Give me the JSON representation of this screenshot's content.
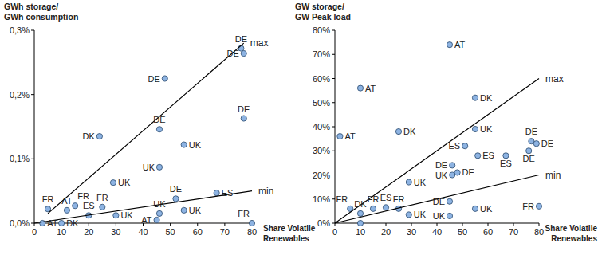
{
  "chart_data": [
    {
      "type": "scatter",
      "y_label": [
        "GWh storage/",
        "GWh consumption"
      ],
      "x_label": [
        "Share Volatile",
        "Renewables"
      ],
      "xlim": [
        0,
        80
      ],
      "xticks": [
        0,
        10,
        20,
        30,
        40,
        50,
        60,
        70,
        80
      ],
      "ylim": [
        0,
        0.3
      ],
      "yticks": [
        {
          "value": 0,
          "label": "0,0%"
        },
        {
          "value": 0.1,
          "label": "0,1%"
        },
        {
          "value": 0.2,
          "label": "0,2%"
        },
        {
          "value": 0.3,
          "label": "0,3%"
        }
      ],
      "grid": false,
      "series": [
        {
          "type": "scatter",
          "marker": "circle",
          "color": "#8db3e2",
          "x": [
            5,
            12,
            15,
            20,
            25,
            24,
            29,
            30,
            48,
            46,
            46,
            55,
            46,
            45,
            52,
            55,
            67,
            76,
            77,
            77,
            80,
            3,
            10
          ],
          "values": [
            0.022,
            0.02,
            0.027,
            0.012,
            0.025,
            0.135,
            0.063,
            0.012,
            0.225,
            0.146,
            0.087,
            0.122,
            0.015,
            0.005,
            0.038,
            0.02,
            0.047,
            0.272,
            0.264,
            0.163,
            0,
            0,
            0
          ],
          "point_labels": [
            "FR",
            "AT",
            "FR",
            "ES",
            "FR",
            "DK",
            "UK",
            "UK",
            "DE",
            "DE",
            "UK",
            "UK",
            "UK",
            "AT",
            "DE",
            "UK",
            "ES",
            "DE",
            "DE",
            "DE",
            "FR",
            "AT",
            "DK"
          ]
        },
        {
          "name": "max",
          "type": "line",
          "line_style": "solid",
          "color": "#000000",
          "x": [
            5,
            77
          ],
          "values": [
            0.015,
            0.28
          ]
        },
        {
          "name": "min",
          "type": "line",
          "line_style": "solid",
          "color": "#000000",
          "x": [
            0,
            80
          ],
          "values": [
            0,
            0.05
          ]
        }
      ]
    },
    {
      "type": "scatter",
      "y_label": [
        "GW storage/",
        "GW Peak load"
      ],
      "x_label": [
        "Share Volatile",
        "Renewables"
      ],
      "xlim": [
        0,
        80
      ],
      "xticks": [
        0,
        10,
        20,
        30,
        40,
        50,
        60,
        70,
        80
      ],
      "ylim": [
        0,
        80
      ],
      "yticks": [
        {
          "value": 0,
          "label": "0%"
        },
        {
          "value": 10,
          "label": "10%"
        },
        {
          "value": 20,
          "label": "20%"
        },
        {
          "value": 30,
          "label": "30%"
        },
        {
          "value": 40,
          "label": "40%"
        },
        {
          "value": 50,
          "label": "50%"
        },
        {
          "value": 60,
          "label": "60%"
        },
        {
          "value": 70,
          "label": "70%"
        },
        {
          "value": 80,
          "label": "80%"
        }
      ],
      "grid": false,
      "series": [
        {
          "type": "scatter",
          "marker": "circle",
          "color": "#8db3e2",
          "x": [
            2,
            10,
            45,
            25,
            55,
            6,
            10,
            15,
            20,
            25,
            29,
            29,
            45,
            45,
            55,
            55,
            46,
            46,
            48,
            51,
            56,
            67,
            77,
            79,
            76,
            80,
            10
          ],
          "values": [
            36,
            56,
            74,
            38,
            52,
            6,
            4,
            6,
            6.5,
            6,
            17,
            3.5,
            9,
            3,
            39,
            6,
            24,
            20,
            21,
            32,
            28,
            28,
            34,
            33,
            30,
            7,
            0
          ],
          "point_labels": [
            "AT",
            "AT",
            "AT",
            "DK",
            "DK",
            "FR",
            "DK",
            "FR",
            "ES",
            "FR",
            "UK",
            "UK",
            "DE",
            "UK",
            "UK",
            "UK",
            "DE",
            "UK",
            "DE",
            "ES",
            "ES",
            "ES",
            "DE",
            "DE",
            "DE",
            "FR",
            null
          ]
        },
        {
          "name": "max",
          "type": "line",
          "line_style": "solid",
          "color": "#000000",
          "x": [
            0,
            80
          ],
          "values": [
            0,
            60
          ]
        },
        {
          "name": "min",
          "type": "line",
          "line_style": "solid",
          "color": "#000000",
          "x": [
            0,
            80
          ],
          "values": [
            0,
            20
          ]
        }
      ]
    }
  ]
}
